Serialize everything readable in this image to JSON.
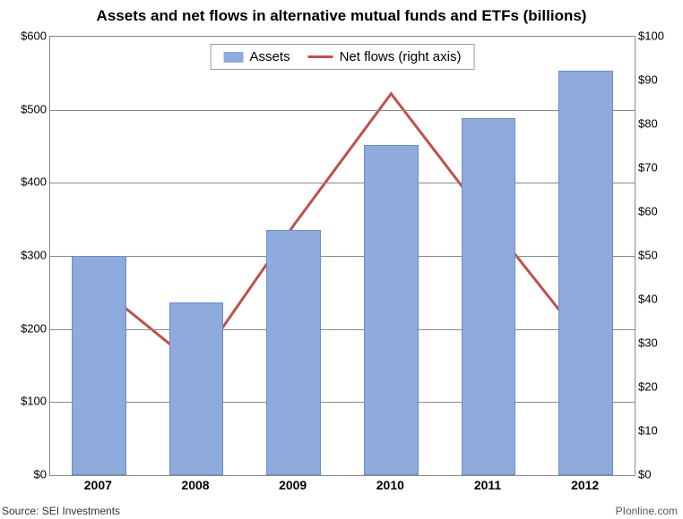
{
  "chart": {
    "type": "bar+line",
    "title": "Assets and net flows in alternative mutual funds and ETFs (billions)",
    "title_fontsize": 17,
    "background_color": "#ffffff",
    "grid_color": "#8a8a8a",
    "plot_border_color": "#8a8a8a",
    "categories": [
      "2007",
      "2008",
      "2009",
      "2010",
      "2011",
      "2012"
    ],
    "x_label_fontsize": 14,
    "left_axis": {
      "min": 0,
      "max": 600,
      "tick_step": 100,
      "prefix": "$",
      "fontsize": 13
    },
    "right_axis": {
      "min": 0,
      "max": 100,
      "tick_step": 10,
      "prefix": "$",
      "fontsize": 13
    },
    "series_bar": {
      "name": "Assets",
      "axis": "left",
      "values": [
        300,
        236,
        336,
        452,
        488,
        554
      ],
      "color": "#8faadc",
      "border_color": "#6a8cc8",
      "bar_width_ratio": 0.56
    },
    "series_line": {
      "name": "Net flows (right axis)",
      "axis": "right",
      "values": [
        43,
        25,
        57,
        87,
        58,
        30
      ],
      "color": "#c0504d",
      "line_width": 3
    },
    "legend": {
      "position": "top-center",
      "border_color": "#999999",
      "background": "#ffffff",
      "fontsize": 15,
      "items": [
        {
          "label": "Assets",
          "type": "bar",
          "color": "#8faadc"
        },
        {
          "label": "Net flows (right axis)",
          "type": "line",
          "color": "#c0504d"
        }
      ]
    },
    "source_text": "Source: SEI Investments",
    "brand_text": "PIonline.com"
  }
}
